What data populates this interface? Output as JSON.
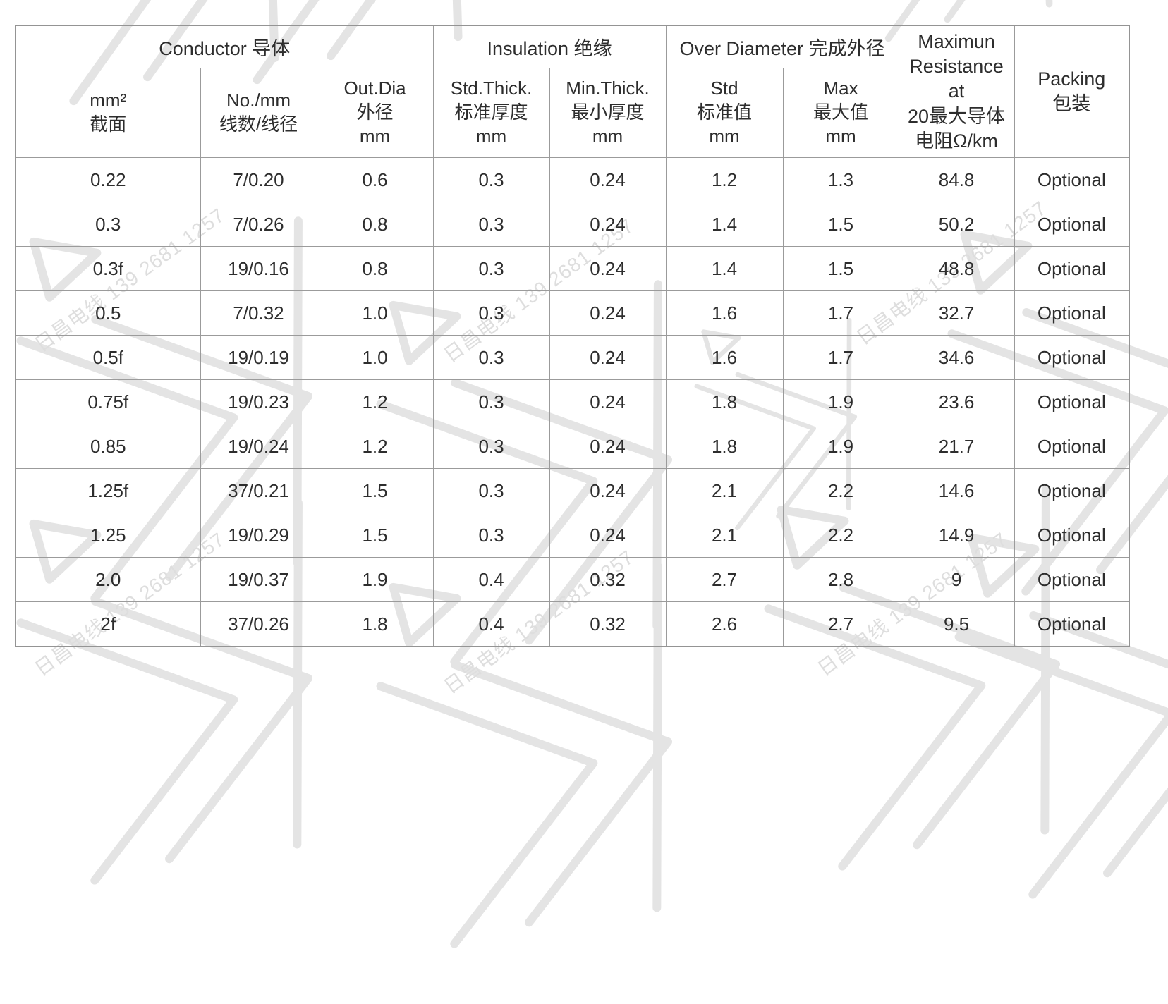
{
  "watermark": {
    "text": "日昌电线 139 2681 1257",
    "text_color": "#dedede",
    "logo_color": "#e4e4e4"
  },
  "colors": {
    "grid_line": "#9b9b9b",
    "text": "#2d2d2d",
    "background": "#ffffff"
  },
  "table": {
    "groups": [
      {
        "label": "Conductor 导体",
        "colspan": "3"
      },
      {
        "label": "Insulation 绝缘",
        "colspan": "2"
      },
      {
        "label": "Over Diameter 完成外径",
        "colspan": "2"
      }
    ],
    "sub_columns": [
      {
        "text": "mm²\n截面"
      },
      {
        "text": "No./mm\n线数/线径"
      },
      {
        "text": "Out.Dia\n外径\nmm"
      },
      {
        "text": "Std.Thick.\n标准厚度\nmm"
      },
      {
        "text": "Min.Thick.\n最小厚度\nmm"
      },
      {
        "text": "Std\n标准值\nmm"
      },
      {
        "text": "Max\n最大值\nmm"
      }
    ],
    "merged_columns": [
      {
        "text": "Maximun\nResistance at\n20最大导体\n电阻Ω/km"
      },
      {
        "text": "Packing\n包装"
      }
    ],
    "rows": [
      [
        "0.22",
        "7/0.20",
        "0.6",
        "0.3",
        "0.24",
        "1.2",
        "1.3",
        "84.8",
        "Optional"
      ],
      [
        "0.3",
        "7/0.26",
        "0.8",
        "0.3",
        "0.24",
        "1.4",
        "1.5",
        "50.2",
        "Optional"
      ],
      [
        "0.3f",
        "19/0.16",
        "0.8",
        "0.3",
        "0.24",
        "1.4",
        "1.5",
        "48.8",
        "Optional"
      ],
      [
        "0.5",
        "7/0.32",
        "1.0",
        "0.3",
        "0.24",
        "1.6",
        "1.7",
        "32.7",
        "Optional"
      ],
      [
        "0.5f",
        "19/0.19",
        "1.0",
        "0.3",
        "0.24",
        "1.6",
        "1.7",
        "34.6",
        "Optional"
      ],
      [
        "0.75f",
        "19/0.23",
        "1.2",
        "0.3",
        "0.24",
        "1.8",
        "1.9",
        "23.6",
        "Optional"
      ],
      [
        "0.85",
        "19/0.24",
        "1.2",
        "0.3",
        "0.24",
        "1.8",
        "1.9",
        "21.7",
        "Optional"
      ],
      [
        "1.25f",
        "37/0.21",
        "1.5",
        "0.3",
        "0.24",
        "2.1",
        "2.2",
        "14.6",
        "Optional"
      ],
      [
        "1.25",
        "19/0.29",
        "1.5",
        "0.3",
        "0.24",
        "2.1",
        "2.2",
        "14.9",
        "Optional"
      ],
      [
        "2.0",
        "19/0.37",
        "1.9",
        "0.4",
        "0.32",
        "2.7",
        "2.8",
        "9",
        "Optional"
      ],
      [
        "2f",
        "37/0.26",
        "1.8",
        "0.4",
        "0.32",
        "2.6",
        "2.7",
        "9.5",
        "Optional"
      ]
    ]
  }
}
